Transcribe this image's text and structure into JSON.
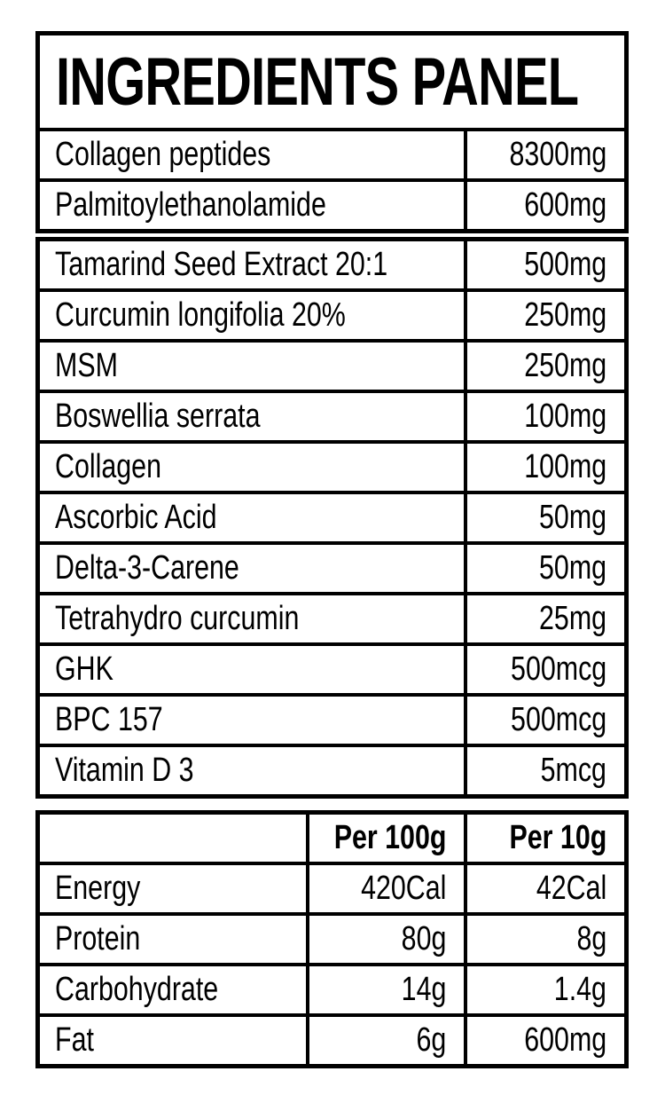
{
  "title": "INGREDIENTS PANEL",
  "colors": {
    "border": "#000000",
    "background": "#ffffff",
    "text": "#000000"
  },
  "ingredients": {
    "group_a": [
      {
        "name": "Collagen peptides",
        "amount": "8300mg"
      },
      {
        "name": "Palmitoylethanolamide",
        "amount": "600mg"
      }
    ],
    "group_b": [
      {
        "name": "Tamarind Seed Extract 20:1",
        "amount": "500mg"
      },
      {
        "name": "Curcumin longifolia 20%",
        "amount": "250mg"
      },
      {
        "name": "MSM",
        "amount": "250mg"
      },
      {
        "name": "Boswellia serrata",
        "amount": "100mg"
      },
      {
        "name": "Collagen",
        "amount": "100mg"
      },
      {
        "name": "Ascorbic Acid",
        "amount": "50mg"
      },
      {
        "name": "Delta-3-Carene",
        "amount": "50mg"
      },
      {
        "name": "Tetrahydro curcumin",
        "amount": "25mg"
      },
      {
        "name": "GHK",
        "amount": "500mcg"
      },
      {
        "name": "BPC 157",
        "amount": "500mcg"
      },
      {
        "name": "Vitamin D 3",
        "amount": "5mcg"
      }
    ]
  },
  "nutrition": {
    "col_100g_header": "Per 100g",
    "col_10g_header": "Per 10g",
    "rows": [
      {
        "label": "Energy",
        "per_100g": "420Cal",
        "per_10g": "42Cal"
      },
      {
        "label": "Protein",
        "per_100g": "80g",
        "per_10g": "8g"
      },
      {
        "label": "Carbohydrate",
        "per_100g": "14g",
        "per_10g": "1.4g"
      },
      {
        "label": "Fat",
        "per_100g": "6g",
        "per_10g": "600mg"
      }
    ]
  }
}
